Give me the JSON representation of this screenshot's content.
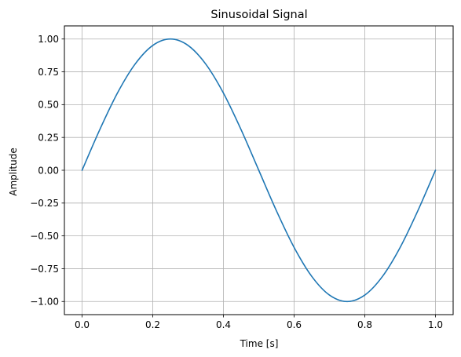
{
  "chart_data": {
    "type": "line",
    "title": "Sinusoidal Signal",
    "xlabel": "Time [s]",
    "ylabel": "Amplitude",
    "xlim": [
      -0.05,
      1.05
    ],
    "ylim": [
      -1.1,
      1.1
    ],
    "grid": true,
    "legend": "none",
    "line_color": "#1f77b4",
    "grid_color": "#b0b0b0",
    "x_ticks": [
      0.0,
      0.2,
      0.4,
      0.6,
      0.8,
      1.0
    ],
    "x_tick_labels": [
      "0.0",
      "0.2",
      "0.4",
      "0.6",
      "0.8",
      "1.0"
    ],
    "y_ticks": [
      -1.0,
      -0.75,
      -0.5,
      -0.25,
      0.0,
      0.25,
      0.5,
      0.75,
      1.0
    ],
    "y_tick_labels": [
      "−1.00",
      "−0.75",
      "−0.50",
      "−0.25",
      "0.00",
      "0.25",
      "0.50",
      "0.75",
      "1.00"
    ],
    "series": [
      {
        "x": [
          0.0,
          0.05,
          0.1,
          0.15,
          0.2,
          0.25,
          0.3,
          0.35,
          0.4,
          0.45,
          0.5,
          0.55,
          0.6,
          0.65,
          0.7,
          0.75,
          0.8,
          0.85,
          0.9,
          0.95,
          1.0
        ],
        "y": [
          0.0,
          0.309,
          0.588,
          0.809,
          0.951,
          1.0,
          0.951,
          0.809,
          0.588,
          0.309,
          0.0,
          -0.309,
          -0.588,
          -0.809,
          -0.951,
          -1.0,
          -0.951,
          -0.809,
          -0.588,
          -0.309,
          0.0
        ]
      }
    ]
  }
}
